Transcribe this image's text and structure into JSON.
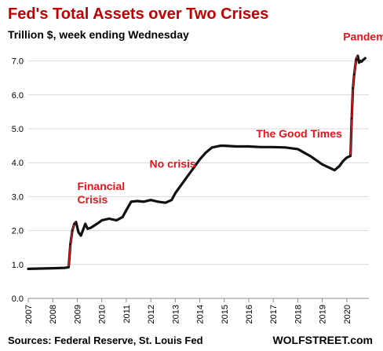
{
  "chart_data": {
    "type": "line",
    "title": "Fed's Total Assets over Two Crises",
    "subtitle": "Trillion $, week ending Wednesday",
    "xlabel": "",
    "ylabel": "",
    "ylim": [
      0,
      7.5
    ],
    "y_ticks": [
      "0.0",
      "1.0",
      "2.0",
      "3.0",
      "4.0",
      "5.0",
      "6.0",
      "7.0"
    ],
    "x_ticks": [
      "2007",
      "2008",
      "2009",
      "2010",
      "2011",
      "2012",
      "2013",
      "2014",
      "2015",
      "2016",
      "2017",
      "2018",
      "2019",
      "2020"
    ],
    "grid": "horizontal",
    "series": [
      {
        "values_x": [
          2007.0,
          2007.5,
          2008.0,
          2008.5,
          2008.65,
          2008.72,
          2008.8,
          2008.88,
          2008.95,
          2009.05,
          2009.15,
          2009.25,
          2009.33,
          2009.42,
          2009.55,
          2009.7,
          2009.85,
          2010.0,
          2010.3,
          2010.6,
          2010.85,
          2011.0,
          2011.2,
          2011.45,
          2011.7,
          2012.0,
          2012.3,
          2012.6,
          2012.85,
          2013.0,
          2013.25,
          2013.5,
          2013.75,
          2014.0,
          2014.25,
          2014.5,
          2014.85,
          2015.0,
          2015.5,
          2016.0,
          2016.5,
          2017.0,
          2017.5,
          2018.0,
          2018.5,
          2019.0,
          2019.5,
          2019.7,
          2019.85,
          2020.0,
          2020.15,
          2020.2,
          2020.25,
          2020.3,
          2020.38,
          2020.45,
          2020.5,
          2020.55,
          2020.6,
          2020.65,
          2020.75
        ],
        "values_y": [
          0.87,
          0.88,
          0.89,
          0.9,
          0.92,
          1.6,
          2.0,
          2.2,
          2.25,
          1.95,
          1.85,
          2.05,
          2.2,
          2.05,
          2.08,
          2.15,
          2.22,
          2.3,
          2.35,
          2.3,
          2.4,
          2.6,
          2.85,
          2.87,
          2.85,
          2.9,
          2.85,
          2.82,
          2.9,
          3.1,
          3.35,
          3.6,
          3.85,
          4.1,
          4.3,
          4.45,
          4.5,
          4.5,
          4.48,
          4.48,
          4.46,
          4.46,
          4.45,
          4.4,
          4.2,
          3.95,
          3.78,
          3.9,
          4.05,
          4.15,
          4.2,
          5.3,
          6.2,
          6.6,
          7.05,
          7.15,
          6.95,
          7.0,
          6.98,
          7.02,
          7.08
        ]
      }
    ],
    "highlight_ranges_x": [
      [
        2008.65,
        2009.0
      ],
      [
        2020.15,
        2020.45
      ]
    ],
    "annotations": [
      {
        "text": "Financial",
        "x": 2009.0,
        "y": 3.2
      },
      {
        "text": "Crisis",
        "x": 2009.0,
        "y": 2.8
      },
      {
        "text": "No crisis",
        "x": 2011.95,
        "y": 3.85
      },
      {
        "text": "The Good Times",
        "x": 2016.3,
        "y": 4.75
      },
      {
        "text": "Pandemic",
        "x": 2019.85,
        "y": 7.6
      }
    ],
    "colors": {
      "line": "#111111",
      "highlight": "#e8141b",
      "annotation": "#e8141b",
      "grid": "#d9d9d9",
      "axis": "#8c8c8c",
      "text": "#000000"
    }
  },
  "footer": {
    "source": "Sources: Federal Reserve, St. Louis Fed",
    "brand": "WOLFSTREET.com"
  }
}
